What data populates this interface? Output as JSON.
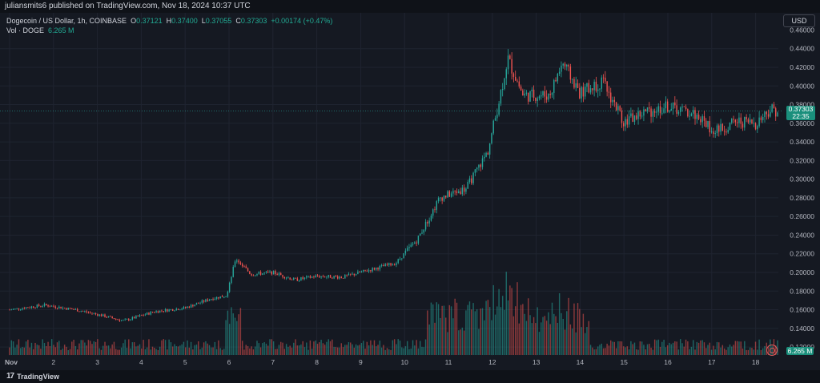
{
  "header": {
    "publisher": "juliansmits6 published on TradingView.com, Nov 18, 2024 10:37 UTC"
  },
  "legend": {
    "symbol": "Dogecoin / US Dollar, 1h, COINBASE",
    "o_label": "O",
    "o_value": "0.37121",
    "h_label": "H",
    "h_value": "0.37400",
    "l_label": "L",
    "l_value": "0.37055",
    "c_label": "C",
    "c_value": "0.37303",
    "change": "+0.00174 (+0.47%)",
    "vol_label": "Vol · DOGE",
    "vol_value": "6.265 M"
  },
  "currency_button": "USD",
  "last_price": {
    "value": "0.37303",
    "countdown": "22:35"
  },
  "last_volume": "6.265 M",
  "footer": {
    "brand": "TradingView"
  },
  "colors": {
    "up": "#26a69a",
    "down": "#ef5350",
    "background": "#151922",
    "grid": "#1f2430"
  },
  "chart_data": {
    "type": "candlestick",
    "timeframe": "1h",
    "y_axis": {
      "ticks": [
        "0.44000",
        "0.42000",
        "0.40000",
        "0.38000",
        "0.36000",
        "0.34000",
        "0.32000",
        "0.30000",
        "0.28000",
        "0.26000",
        "0.24000",
        "0.22000",
        "0.20000",
        "0.18000",
        "0.16000",
        "0.14000",
        "0.12000"
      ],
      "range": [
        0.11,
        0.45
      ],
      "top_partial_label": "0.46000"
    },
    "x_axis": {
      "ticks": [
        "Nov",
        "2",
        "3",
        "4",
        "5",
        "6",
        "7",
        "8",
        "9",
        "10",
        "11",
        "12",
        "13",
        "14",
        "15",
        "16",
        "17",
        "18"
      ]
    },
    "key_points": [
      {
        "x": 1.0,
        "y": 0.16
      },
      {
        "x": 1.8,
        "y": 0.165
      },
      {
        "x": 2.5,
        "y": 0.16
      },
      {
        "x": 3.0,
        "y": 0.155
      },
      {
        "x": 3.6,
        "y": 0.148
      },
      {
        "x": 4.3,
        "y": 0.158
      },
      {
        "x": 5.0,
        "y": 0.162
      },
      {
        "x": 5.6,
        "y": 0.172
      },
      {
        "x": 5.95,
        "y": 0.175
      },
      {
        "x": 6.15,
        "y": 0.215
      },
      {
        "x": 6.5,
        "y": 0.198
      },
      {
        "x": 7.0,
        "y": 0.2
      },
      {
        "x": 7.5,
        "y": 0.192
      },
      {
        "x": 8.0,
        "y": 0.196
      },
      {
        "x": 8.6,
        "y": 0.195
      },
      {
        "x": 9.3,
        "y": 0.204
      },
      {
        "x": 9.8,
        "y": 0.21
      },
      {
        "x": 10.3,
        "y": 0.236
      },
      {
        "x": 10.8,
        "y": 0.28
      },
      {
        "x": 11.4,
        "y": 0.29
      },
      {
        "x": 11.9,
        "y": 0.33
      },
      {
        "x": 12.2,
        "y": 0.395
      },
      {
        "x": 12.35,
        "y": 0.43
      },
      {
        "x": 12.7,
        "y": 0.39
      },
      {
        "x": 13.3,
        "y": 0.39
      },
      {
        "x": 13.6,
        "y": 0.425
      },
      {
        "x": 14.0,
        "y": 0.392
      },
      {
        "x": 14.5,
        "y": 0.405
      },
      {
        "x": 15.0,
        "y": 0.362
      },
      {
        "x": 15.5,
        "y": 0.372
      },
      {
        "x": 16.0,
        "y": 0.378
      },
      {
        "x": 16.6,
        "y": 0.37
      },
      {
        "x": 17.1,
        "y": 0.351
      },
      {
        "x": 17.6,
        "y": 0.362
      },
      {
        "x": 18.0,
        "y": 0.36
      },
      {
        "x": 18.35,
        "y": 0.376
      },
      {
        "x": 18.5,
        "y": 0.373
      }
    ]
  }
}
